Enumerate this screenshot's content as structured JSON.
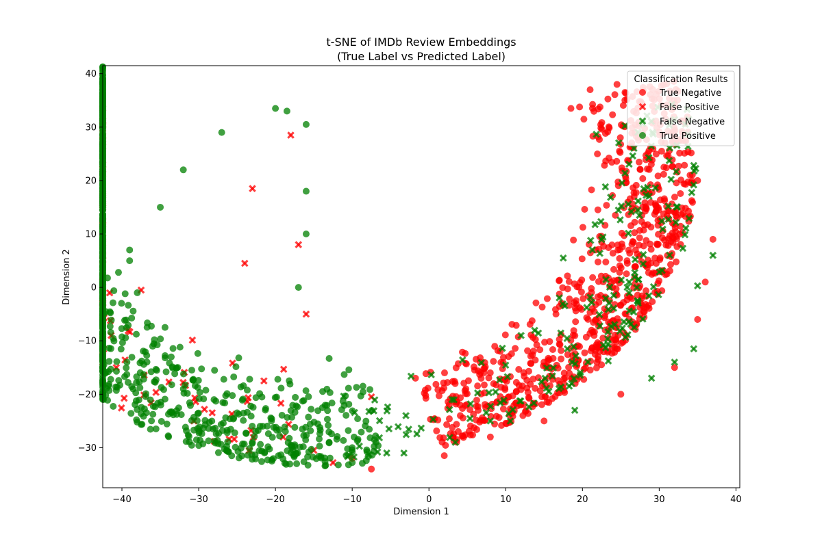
{
  "chart_data": {
    "type": "scatter",
    "title": "t-SNE of IMDb Review Embeddings",
    "subtitle": "(True Label vs Predicted Label)",
    "xlabel": "Dimension 1",
    "ylabel": "Dimension 2",
    "xlim": [
      -42.5,
      40.5
    ],
    "ylim": [
      -37.5,
      41.5
    ],
    "xticks": [
      -40,
      -30,
      -20,
      -10,
      0,
      10,
      20,
      30,
      40
    ],
    "yticks": [
      -30,
      -20,
      -10,
      0,
      10,
      20,
      30,
      40
    ],
    "grid": false,
    "legend": {
      "title": "Classification Results",
      "placement": "top-right"
    },
    "series": [
      {
        "name": "True Negative",
        "color": "#ff0000",
        "marker": "circle",
        "shape": "arc",
        "arc_center": [
          -12.6,
          21.4
        ],
        "radius": [
          34.5,
          49.7
        ],
        "angle_deg": [
          -72.5,
          19.5
        ],
        "count": 850,
        "anchor_points": [
          [
            24.5,
            38.0
          ],
          [
            21.0,
            37.0
          ],
          [
            18.5,
            33.5
          ],
          [
            32.0,
            28.0
          ],
          [
            35.0,
            20.0
          ],
          [
            37.0,
            9.0
          ],
          [
            36.0,
            1.0
          ],
          [
            35.0,
            -6.0
          ],
          [
            32.0,
            -15.0
          ],
          [
            25.0,
            -20.0
          ],
          [
            15.0,
            -25.0
          ],
          [
            8.0,
            -28.0
          ],
          [
            2.0,
            -31.5
          ],
          [
            -7.5,
            -34.0
          ],
          [
            -10.0,
            -32.0
          ]
        ]
      },
      {
        "name": "False Positive",
        "color": "#ff0000",
        "marker": "x",
        "shape": "arc",
        "arc_center": [
          -12.6,
          21.4
        ],
        "radius": [
          34.0,
          50.0
        ],
        "angle_deg": [
          165.0,
          268.0
        ],
        "count": 80,
        "anchor_points": [
          [
            -37.5,
            -0.5
          ],
          [
            -30.5,
            -20.7
          ],
          [
            -24.0,
            4.5
          ],
          [
            -21.5,
            -17.5
          ],
          [
            -19.0,
            -28.0
          ],
          [
            -17.0,
            8.0
          ],
          [
            -16.0,
            -5.0
          ],
          [
            -15.0,
            -30.5
          ],
          [
            -12.5,
            -32.8
          ],
          [
            -7.5,
            -20.5
          ],
          [
            -18.0,
            28.5
          ],
          [
            -23.0,
            18.5
          ]
        ]
      },
      {
        "name": "False Negative",
        "color": "#008000",
        "marker": "x",
        "shape": "arc",
        "arc_center": [
          -12.6,
          21.4
        ],
        "radius": [
          36.0,
          50.0
        ],
        "angle_deg": [
          -90.0,
          15.0
        ],
        "count": 200,
        "anchor_points": [
          [
            37.0,
            6.0
          ],
          [
            35.0,
            0.3
          ],
          [
            34.5,
            -11.5
          ],
          [
            32.0,
            -14.0
          ],
          [
            29.0,
            -17.0
          ],
          [
            19.0,
            -23.0
          ],
          [
            12.0,
            -9.0
          ],
          [
            8.0,
            -25.0
          ],
          [
            3.0,
            -21.0
          ],
          [
            -3.0,
            -24.0
          ],
          [
            -5.5,
            -31.0
          ],
          [
            17.5,
            5.5
          ]
        ]
      },
      {
        "name": "True Positive",
        "color": "#008000",
        "marker": "circle",
        "shape": "arc",
        "arc_center": [
          -12.6,
          21.4
        ],
        "radius": [
          33.5,
          51.0
        ],
        "angle_deg": [
          158.0,
          278.0
        ],
        "count": 1000,
        "anchor_points": [
          [
            -20.0,
            33.5
          ],
          [
            -18.5,
            33.0
          ],
          [
            -16.0,
            30.5
          ],
          [
            -27.0,
            29.0
          ],
          [
            -32.0,
            22.0
          ],
          [
            -35.0,
            15.0
          ],
          [
            -39.0,
            7.0
          ],
          [
            -39.0,
            5.0
          ],
          [
            -38.0,
            -1.0
          ],
          [
            -36.0,
            -11.0
          ],
          [
            -32.0,
            -19.0
          ],
          [
            -28.0,
            -21.0
          ],
          [
            -22.0,
            -26.0
          ],
          [
            -18.0,
            -29.5
          ],
          [
            -13.0,
            -29.0
          ],
          [
            -10.0,
            -30.0
          ],
          [
            -16.0,
            18.0
          ],
          [
            -16.0,
            10.0
          ],
          [
            -17.0,
            0.0
          ],
          [
            -13.0,
            -13.3
          ]
        ]
      }
    ]
  }
}
